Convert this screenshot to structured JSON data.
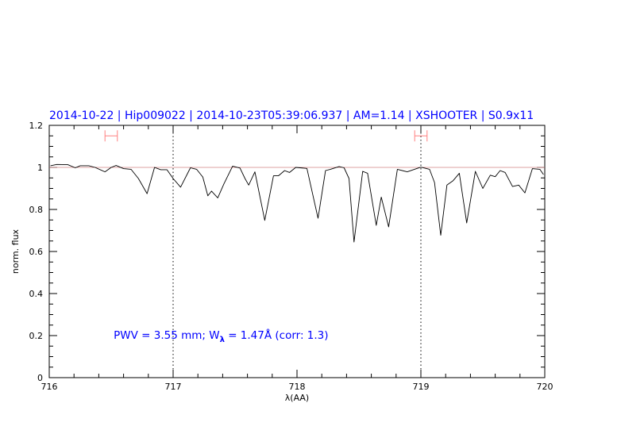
{
  "chart_data": {
    "type": "line",
    "title": "2014-10-22 | Hip009022 | 2014-10-23T05:39:06.937 | AM=1.14 | XSHOOTER | S0.9x11",
    "xlabel": "λ(AA)",
    "ylabel": "norm. flux",
    "xlim": [
      716,
      720
    ],
    "ylim": [
      0,
      1.2
    ],
    "xticks": [
      716,
      717,
      718,
      719,
      720
    ],
    "yticks": [
      0,
      0.2,
      0.4,
      0.6,
      0.8,
      1,
      1.2
    ],
    "ytick_labels": [
      "0",
      "0.2",
      "0.4",
      "0.6",
      "0.8",
      "1",
      "1.2"
    ],
    "x_minor_step": 0.2,
    "y_minor_step": 0.05,
    "grid": false,
    "reference_line_y": 1,
    "vlines_dotted": [
      717,
      719
    ],
    "error_bars": [
      {
        "x": [
          716.45,
          716.55
        ],
        "y": 1.15
      },
      {
        "x": [
          718.95,
          719.05
        ],
        "y": 1.15
      }
    ],
    "annotation": {
      "x": 716.52,
      "y": 0.2,
      "text_before": "PWV = 3.55 mm; W",
      "subscript": "λ",
      "text_after": " = 1.47Å (corr: 1.3)"
    },
    "colors": {
      "title": "#0000ff",
      "annotation": "#0000ff",
      "error_bars": "#ff8080",
      "reference_line": "#d08080",
      "spectrum": "#000000"
    },
    "series": [
      {
        "x": [
          716.01,
          716.06,
          716.15,
          716.21,
          716.25,
          716.32,
          716.37,
          716.45,
          716.5,
          716.54,
          716.6,
          716.66,
          716.72,
          716.79,
          716.85,
          716.9,
          716.95,
          717.0,
          717.06,
          717.14,
          717.19,
          717.24,
          717.28,
          717.31,
          717.36,
          717.41,
          717.48,
          717.54,
          717.58,
          717.61,
          717.66,
          717.74,
          717.81,
          717.85,
          717.9,
          717.94,
          717.99,
          718.08,
          718.17,
          718.23,
          718.27,
          718.34,
          718.38,
          718.42,
          718.46,
          718.53,
          718.57,
          718.64,
          718.68,
          718.74,
          718.81,
          718.89,
          719.0,
          719.07,
          719.11,
          719.16,
          719.21,
          719.26,
          719.31,
          719.37,
          719.44,
          719.5,
          719.56,
          719.6,
          719.64,
          719.68,
          719.74,
          719.79,
          719.84,
          719.9,
          719.96,
          719.99
        ],
        "y": [
          1.008,
          1.014,
          1.013,
          0.998,
          1.008,
          1.008,
          1.0,
          0.979,
          1.0,
          1.009,
          0.994,
          0.991,
          0.947,
          0.875,
          1.0,
          0.989,
          0.989,
          0.947,
          0.906,
          0.998,
          0.991,
          0.954,
          0.865,
          0.887,
          0.855,
          0.922,
          1.006,
          0.997,
          0.947,
          0.916,
          0.979,
          0.748,
          0.96,
          0.96,
          0.985,
          0.976,
          1.0,
          0.995,
          0.758,
          0.985,
          0.991,
          1.004,
          0.998,
          0.947,
          0.645,
          0.981,
          0.972,
          0.724,
          0.859,
          0.717,
          0.991,
          0.979,
          1.001,
          0.991,
          0.928,
          0.677,
          0.916,
          0.937,
          0.972,
          0.736,
          0.981,
          0.9,
          0.963,
          0.956,
          0.985,
          0.976,
          0.909,
          0.916,
          0.879,
          0.994,
          0.991,
          0.966
        ]
      }
    ]
  }
}
